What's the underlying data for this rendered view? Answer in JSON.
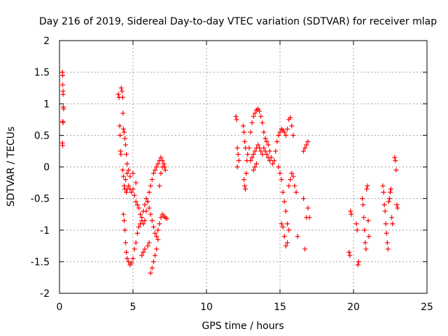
{
  "chart_data": {
    "type": "scatter",
    "title": "Day 216 of 2019, Sidereal Day-to-day VTEC variation (SDTVAR) for receiver mlap",
    "xlabel": "GPS time / hours",
    "ylabel": "SDTVAR / TECUs",
    "xlim": [
      0,
      25
    ],
    "ylim": [
      -2,
      2
    ],
    "xticks": [
      0,
      5,
      10,
      15,
      20,
      25
    ],
    "xtick_labels": [
      "0",
      "5",
      "10",
      "15",
      "20",
      "25"
    ],
    "yticks": [
      -2,
      -1.5,
      -1,
      -0.5,
      0,
      0.5,
      1,
      1.5,
      2
    ],
    "ytick_labels": [
      "-2",
      "-1.5",
      "-1",
      "-0.5",
      "0",
      "0.5",
      "1",
      "1.5",
      "2"
    ],
    "grid": true,
    "marker": "+",
    "marker_color": "#ff0000",
    "series": [
      {
        "name": "SDTVAR",
        "points": [
          [
            0.2,
            1.5
          ],
          [
            0.22,
            1.45
          ],
          [
            0.22,
            1.3
          ],
          [
            0.24,
            1.2
          ],
          [
            0.25,
            1.15
          ],
          [
            0.26,
            0.95
          ],
          [
            0.28,
            0.92
          ],
          [
            0.22,
            0.72
          ],
          [
            0.24,
            0.7
          ],
          [
            0.2,
            0.38
          ],
          [
            0.22,
            0.34
          ],
          [
            4.0,
            1.15
          ],
          [
            4.05,
            1.1
          ],
          [
            4.1,
            0.65
          ],
          [
            4.12,
            0.5
          ],
          [
            4.15,
            0.25
          ],
          [
            4.18,
            0.2
          ],
          [
            4.2,
            1.25
          ],
          [
            4.25,
            1.2
          ],
          [
            4.3,
            1.1
          ],
          [
            4.32,
            0.85
          ],
          [
            4.35,
            0.6
          ],
          [
            4.4,
            0.55
          ],
          [
            4.45,
            0.45
          ],
          [
            4.5,
            0.35
          ],
          [
            4.55,
            0.2
          ],
          [
            4.6,
            0.05
          ],
          [
            4.3,
            -0.05
          ],
          [
            4.35,
            -0.15
          ],
          [
            4.4,
            -0.3
          ],
          [
            4.45,
            -0.35
          ],
          [
            4.5,
            -0.2
          ],
          [
            4.55,
            -0.4
          ],
          [
            4.6,
            -0.35
          ],
          [
            4.7,
            -0.3
          ],
          [
            4.8,
            -0.35
          ],
          [
            4.9,
            -0.4
          ],
          [
            5.0,
            -0.35
          ],
          [
            5.1,
            -0.45
          ],
          [
            5.2,
            -0.55
          ],
          [
            5.3,
            -0.6
          ],
          [
            5.4,
            -0.65
          ],
          [
            5.5,
            -0.75
          ],
          [
            5.6,
            -0.85
          ],
          [
            5.7,
            -0.9
          ],
          [
            5.8,
            -0.85
          ],
          [
            5.9,
            -0.7
          ],
          [
            6.0,
            -0.55
          ],
          [
            6.1,
            -0.4
          ],
          [
            6.2,
            -0.3
          ],
          [
            6.3,
            -0.2
          ],
          [
            6.4,
            -0.1
          ],
          [
            6.5,
            -0.05
          ],
          [
            6.6,
            0.0
          ],
          [
            6.7,
            0.05
          ],
          [
            6.8,
            0.1
          ],
          [
            6.9,
            0.15
          ],
          [
            7.0,
            0.1
          ],
          [
            7.1,
            0.05
          ],
          [
            7.15,
            0.0
          ],
          [
            4.35,
            -0.75
          ],
          [
            4.4,
            -0.85
          ],
          [
            4.45,
            -1.0
          ],
          [
            4.5,
            -1.2
          ],
          [
            4.55,
            -1.35
          ],
          [
            4.6,
            -1.45
          ],
          [
            4.7,
            -1.5
          ],
          [
            4.8,
            -1.55
          ],
          [
            4.9,
            -1.52
          ],
          [
            5.0,
            -1.45
          ],
          [
            5.1,
            -1.3
          ],
          [
            5.2,
            -1.2
          ],
          [
            5.3,
            -1.05
          ],
          [
            5.4,
            -0.95
          ],
          [
            5.5,
            -0.9
          ],
          [
            5.6,
            -0.8
          ],
          [
            5.7,
            -0.7
          ],
          [
            5.8,
            -0.6
          ],
          [
            5.9,
            -0.5
          ],
          [
            6.0,
            -0.55
          ],
          [
            6.1,
            -0.65
          ],
          [
            6.2,
            -0.75
          ],
          [
            6.3,
            -0.85
          ],
          [
            6.4,
            -0.95
          ],
          [
            6.5,
            -1.05
          ],
          [
            6.6,
            -1.1
          ],
          [
            6.7,
            -1.0
          ],
          [
            6.8,
            -0.9
          ],
          [
            6.9,
            -0.8
          ],
          [
            7.0,
            -0.75
          ],
          [
            7.1,
            -0.78
          ],
          [
            7.2,
            -0.8
          ],
          [
            7.3,
            -0.82
          ],
          [
            4.6,
            -0.1
          ],
          [
            4.7,
            -0.05
          ],
          [
            4.8,
            -0.15
          ],
          [
            5.0,
            -0.1
          ],
          [
            5.2,
            -0.25
          ],
          [
            5.6,
            -1.4
          ],
          [
            5.7,
            -1.35
          ],
          [
            5.8,
            -1.3
          ],
          [
            6.0,
            -1.25
          ],
          [
            6.1,
            -1.2
          ],
          [
            6.2,
            -1.68
          ],
          [
            6.3,
            -1.6
          ],
          [
            6.4,
            -1.5
          ],
          [
            6.5,
            -1.4
          ],
          [
            6.6,
            -1.3
          ],
          [
            6.7,
            -1.15
          ],
          [
            6.8,
            -0.3
          ],
          [
            6.9,
            -0.1
          ],
          [
            7.0,
            0.0
          ],
          [
            7.2,
            -0.05
          ],
          [
            12.0,
            0.8
          ],
          [
            12.05,
            0.75
          ],
          [
            12.1,
            0.3
          ],
          [
            12.15,
            0.2
          ],
          [
            12.2,
            0.1
          ],
          [
            12.1,
            0.0
          ],
          [
            12.5,
            0.65
          ],
          [
            12.55,
            0.55
          ],
          [
            12.6,
            0.4
          ],
          [
            12.65,
            0.3
          ],
          [
            12.55,
            -0.2
          ],
          [
            12.6,
            -0.3
          ],
          [
            12.65,
            -0.35
          ],
          [
            12.7,
            -0.1
          ],
          [
            12.75,
            0.1
          ],
          [
            12.8,
            0.2
          ],
          [
            12.9,
            0.3
          ],
          [
            13.0,
            0.55
          ],
          [
            13.1,
            0.7
          ],
          [
            13.2,
            0.8
          ],
          [
            13.3,
            0.85
          ],
          [
            13.4,
            0.9
          ],
          [
            13.5,
            0.92
          ],
          [
            13.6,
            0.88
          ],
          [
            13.7,
            0.8
          ],
          [
            13.8,
            0.7
          ],
          [
            13.9,
            0.55
          ],
          [
            14.0,
            0.45
          ],
          [
            14.1,
            0.4
          ],
          [
            14.2,
            0.35
          ],
          [
            14.3,
            0.25
          ],
          [
            14.4,
            0.15
          ],
          [
            14.5,
            0.05
          ],
          [
            14.6,
            0.1
          ],
          [
            14.7,
            0.25
          ],
          [
            14.8,
            0.4
          ],
          [
            14.9,
            0.5
          ],
          [
            15.0,
            0.55
          ],
          [
            15.1,
            0.6
          ],
          [
            15.2,
            0.58
          ],
          [
            15.3,
            0.55
          ],
          [
            15.4,
            0.5
          ],
          [
            15.5,
            0.6
          ],
          [
            15.6,
            0.75
          ],
          [
            15.7,
            0.78
          ],
          [
            15.8,
            0.65
          ],
          [
            15.9,
            0.5
          ],
          [
            13.0,
            0.1
          ],
          [
            13.1,
            0.15
          ],
          [
            13.2,
            0.2
          ],
          [
            13.3,
            0.25
          ],
          [
            13.4,
            0.3
          ],
          [
            13.5,
            0.35
          ],
          [
            13.6,
            0.3
          ],
          [
            13.7,
            0.25
          ],
          [
            13.8,
            0.2
          ],
          [
            13.9,
            0.3
          ],
          [
            14.0,
            0.25
          ],
          [
            14.1,
            0.2
          ],
          [
            14.2,
            0.15
          ],
          [
            14.3,
            0.1
          ],
          [
            13.2,
            -0.05
          ],
          [
            13.3,
            0.0
          ],
          [
            13.4,
            0.05
          ],
          [
            14.9,
            0.0
          ],
          [
            15.0,
            -0.1
          ],
          [
            15.1,
            -0.2
          ],
          [
            15.2,
            -0.4
          ],
          [
            15.3,
            -0.55
          ],
          [
            15.4,
            -0.7
          ],
          [
            15.5,
            -0.9
          ],
          [
            15.6,
            -1.0
          ],
          [
            15.5,
            -1.2
          ],
          [
            15.4,
            -1.25
          ],
          [
            15.3,
            -1.1
          ],
          [
            15.2,
            -0.95
          ],
          [
            15.1,
            -0.9
          ],
          [
            15.6,
            -0.3
          ],
          [
            15.7,
            -0.2
          ],
          [
            15.8,
            -0.1
          ],
          [
            15.9,
            -0.15
          ],
          [
            16.0,
            -0.3
          ],
          [
            16.1,
            -0.4
          ],
          [
            16.2,
            -1.1
          ],
          [
            16.6,
            0.25
          ],
          [
            16.7,
            0.3
          ],
          [
            16.8,
            0.35
          ],
          [
            16.9,
            0.4
          ],
          [
            16.7,
            -1.3
          ],
          [
            16.8,
            -0.8
          ],
          [
            16.9,
            -0.65
          ],
          [
            17.0,
            -0.8
          ],
          [
            16.6,
            -0.5
          ],
          [
            19.7,
            -1.35
          ],
          [
            19.75,
            -1.4
          ],
          [
            19.8,
            -0.7
          ],
          [
            19.85,
            -0.75
          ],
          [
            20.2,
            -0.9
          ],
          [
            20.25,
            -1.0
          ],
          [
            20.3,
            -1.55
          ],
          [
            20.35,
            -1.5
          ],
          [
            20.6,
            -0.5
          ],
          [
            20.65,
            -0.6
          ],
          [
            20.7,
            -0.8
          ],
          [
            20.75,
            -1.0
          ],
          [
            20.8,
            -1.2
          ],
          [
            20.85,
            -1.3
          ],
          [
            20.9,
            -0.35
          ],
          [
            20.95,
            -0.3
          ],
          [
            21.0,
            -0.85
          ],
          [
            21.05,
            -1.1
          ],
          [
            22.0,
            -0.3
          ],
          [
            22.05,
            -0.4
          ],
          [
            22.1,
            -0.6
          ],
          [
            22.15,
            -0.7
          ],
          [
            22.2,
            -0.9
          ],
          [
            22.25,
            -1.05
          ],
          [
            22.3,
            -1.2
          ],
          [
            22.35,
            -1.3
          ],
          [
            22.4,
            -0.55
          ],
          [
            22.45,
            -0.5
          ],
          [
            22.5,
            -0.4
          ],
          [
            22.55,
            -0.35
          ],
          [
            22.6,
            -0.8
          ],
          [
            22.65,
            -0.9
          ],
          [
            22.8,
            0.15
          ],
          [
            22.85,
            0.1
          ],
          [
            22.9,
            -0.05
          ],
          [
            22.95,
            -0.6
          ],
          [
            23.0,
            -0.65
          ]
        ]
      }
    ]
  }
}
